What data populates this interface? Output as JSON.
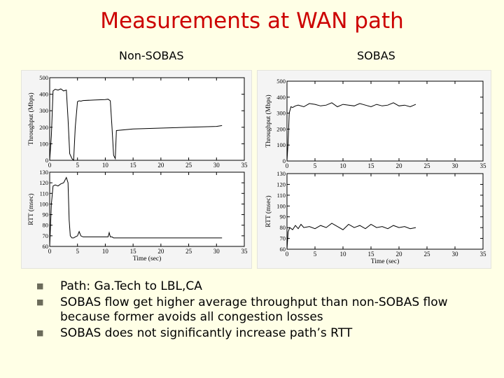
{
  "slide": {
    "title": "Measurements at WAN path",
    "left_label": "Non-SOBAS",
    "right_label": "SOBAS"
  },
  "bullets": [
    "Path: Ga.Tech to LBL,CA",
    "SOBAS flow get higher average throughput than non-SOBAS flow because former avoids all congestion losses",
    "SOBAS does not significantly increase path’s RTT"
  ],
  "colors": {
    "title": "#cc0000",
    "background": "#ffffe6",
    "plot_line": "#000000"
  },
  "chart_data": [
    {
      "type": "line",
      "panel": "non-sobas-throughput",
      "ylabel": "Throughput (Mbps)",
      "xlabel": "",
      "xlim": [
        0,
        35
      ],
      "ylim": [
        0,
        500
      ],
      "xticks": [
        0,
        5,
        10,
        15,
        20,
        25,
        30,
        35
      ],
      "yticks": [
        0,
        100,
        200,
        300,
        400,
        500
      ],
      "series": [
        {
          "x": [
            0,
            0.3,
            0.6,
            1,
            1.5,
            2,
            2.5,
            3,
            3.3,
            3.6,
            4,
            4.3,
            4.6,
            5,
            5.3,
            5.6,
            6,
            8,
            10,
            10.5,
            10.9,
            11.2,
            11.5,
            11.8,
            12,
            15,
            20,
            25,
            30,
            31
          ],
          "y": [
            0,
            150,
            420,
            430,
            425,
            432,
            420,
            425,
            250,
            40,
            10,
            0,
            200,
            355,
            360,
            358,
            362,
            365,
            368,
            370,
            360,
            200,
            30,
            10,
            180,
            190,
            195,
            200,
            205,
            210
          ]
        }
      ]
    },
    {
      "type": "line",
      "panel": "non-sobas-rtt",
      "ylabel": "RTT (msec)",
      "xlabel": "Time (sec)",
      "xlim": [
        0,
        35
      ],
      "ylim": [
        60,
        130
      ],
      "xticks": [
        0,
        5,
        10,
        15,
        20,
        25,
        30,
        35
      ],
      "yticks": [
        60,
        70,
        80,
        90,
        100,
        110,
        120,
        130
      ],
      "series": [
        {
          "x": [
            0,
            0.3,
            0.6,
            1,
            1.5,
            2,
            2.5,
            3,
            3.3,
            3.5,
            3.7,
            4,
            4.3,
            4.6,
            5,
            5.3,
            5.6,
            6,
            8,
            10,
            10.5,
            10.7,
            10.9,
            11.2,
            11.5,
            15,
            20,
            25,
            30,
            31
          ],
          "y": [
            60,
            100,
            117,
            118,
            117,
            119,
            120,
            125,
            120,
            85,
            70,
            68,
            68,
            69,
            70,
            74,
            70,
            69,
            69,
            69,
            69,
            73,
            69,
            69,
            68,
            68,
            68,
            68,
            68,
            68
          ]
        }
      ]
    },
    {
      "type": "line",
      "panel": "sobas-throughput",
      "ylabel": "Throughput (Mbps)",
      "xlabel": "",
      "xlim": [
        0,
        35
      ],
      "ylim": [
        0,
        500
      ],
      "xticks": [
        0,
        5,
        10,
        15,
        20,
        25,
        30,
        35
      ],
      "yticks": [
        0,
        100,
        200,
        300,
        400,
        500
      ],
      "series": [
        {
          "x": [
            0,
            0.2,
            0.4,
            0.7,
            1,
            1.5,
            2,
            3,
            4,
            5,
            6,
            7,
            8,
            9,
            10,
            11,
            12,
            13,
            14,
            15,
            16,
            17,
            18,
            19,
            20,
            21,
            22,
            23
          ],
          "y": [
            0,
            120,
            300,
            340,
            335,
            345,
            350,
            340,
            360,
            355,
            345,
            350,
            365,
            340,
            355,
            350,
            345,
            360,
            350,
            340,
            355,
            345,
            350,
            365,
            345,
            350,
            340,
            355
          ]
        }
      ]
    },
    {
      "type": "line",
      "panel": "sobas-rtt",
      "ylabel": "RTT (msec)",
      "xlabel": "Time (sec)",
      "xlim": [
        0,
        35
      ],
      "ylim": [
        60,
        130
      ],
      "xticks": [
        0,
        5,
        10,
        15,
        20,
        25,
        30,
        35
      ],
      "yticks": [
        60,
        70,
        80,
        90,
        100,
        110,
        120,
        130
      ],
      "series": [
        {
          "x": [
            0,
            0.2,
            0.5,
            1,
            1.5,
            2,
            2.5,
            3,
            4,
            5,
            6,
            7,
            8,
            9,
            10,
            11,
            12,
            13,
            14,
            15,
            16,
            17,
            18,
            19,
            20,
            21,
            22,
            23
          ],
          "y": [
            60,
            76,
            80,
            78,
            82,
            79,
            83,
            80,
            81,
            79,
            82,
            80,
            84,
            81,
            78,
            83,
            80,
            82,
            79,
            83,
            80,
            81,
            79,
            82,
            80,
            81,
            79,
            80
          ]
        }
      ]
    }
  ]
}
